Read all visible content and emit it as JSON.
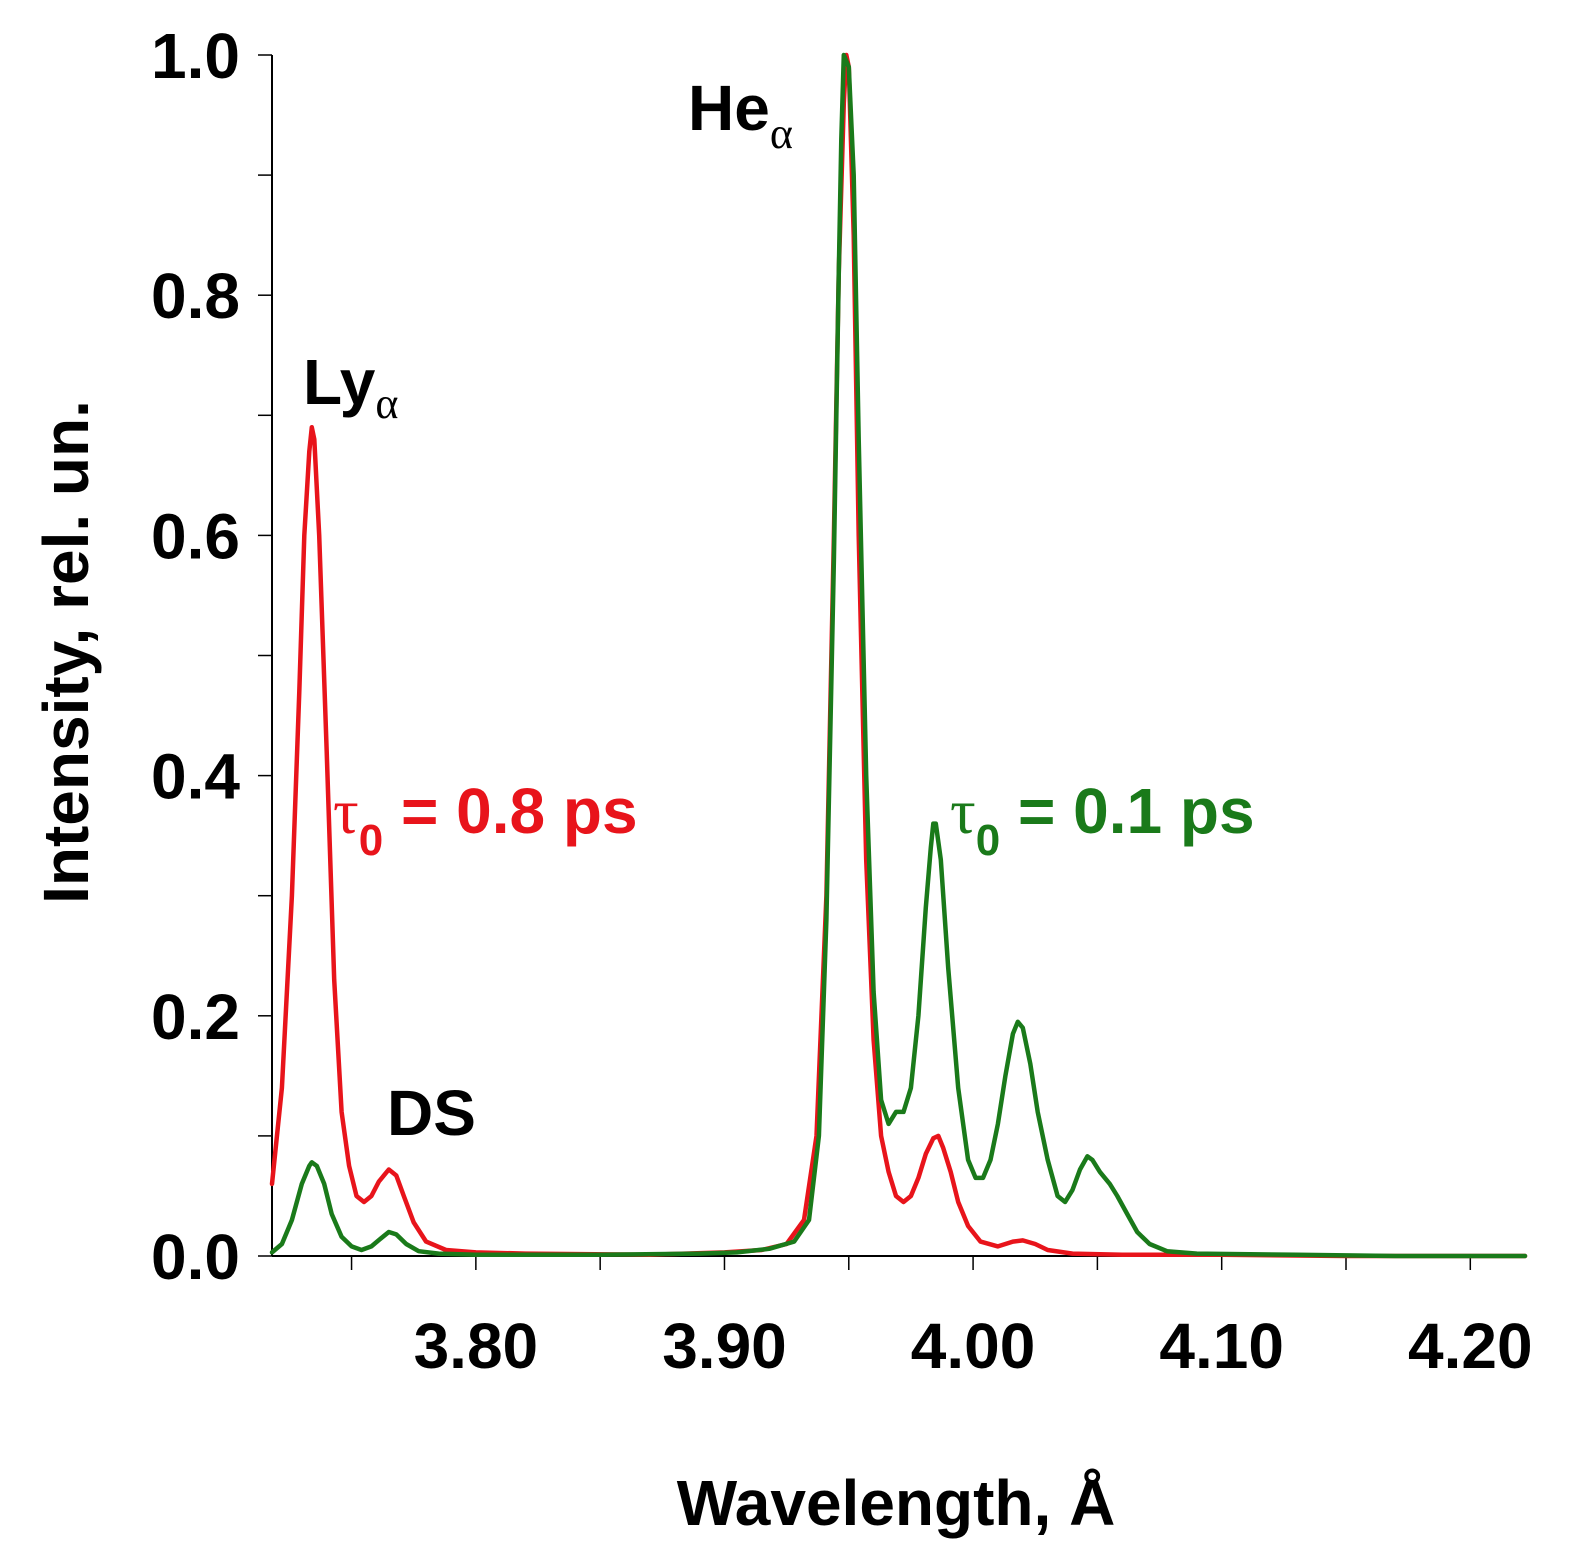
{
  "chart_data": {
    "type": "line",
    "xlabel": "Wavelength, Å",
    "ylabel": "Intensity, rel. un.",
    "xlim": [
      3.718,
      4.222
    ],
    "ylim": [
      0.0,
      1.0
    ],
    "grid": false,
    "x_ticks_labeled": [
      "3.80",
      "3.90",
      "4.00",
      "4.10",
      "4.20"
    ],
    "y_ticks_labeled": [
      "0.0",
      "0.2",
      "0.4",
      "0.6",
      "0.8",
      "1.0"
    ],
    "annotations": [
      {
        "id": "lya",
        "base": "Ly",
        "sub": "α",
        "color": "#000000"
      },
      {
        "id": "ds",
        "base": "DS",
        "sub": "",
        "color": "#000000"
      },
      {
        "id": "hea",
        "base": "He",
        "sub": "α",
        "color": "#000000"
      },
      {
        "id": "tau08",
        "greek": "τ",
        "sub": "0",
        "text": " = 0.8 ps",
        "color": "#e8141b"
      },
      {
        "id": "tau01",
        "greek": "τ",
        "sub": "0",
        "text": " = 0.1 ps",
        "color": "#1a7a1a"
      }
    ],
    "series": [
      {
        "name": "τ0 = 0.8 ps",
        "color": "#e8141b",
        "points": [
          [
            3.718,
            0.06
          ],
          [
            3.722,
            0.14
          ],
          [
            3.726,
            0.3
          ],
          [
            3.729,
            0.47
          ],
          [
            3.731,
            0.6
          ],
          [
            3.733,
            0.67
          ],
          [
            3.734,
            0.69
          ],
          [
            3.735,
            0.68
          ],
          [
            3.737,
            0.6
          ],
          [
            3.74,
            0.42
          ],
          [
            3.743,
            0.23
          ],
          [
            3.746,
            0.12
          ],
          [
            3.749,
            0.075
          ],
          [
            3.752,
            0.05
          ],
          [
            3.755,
            0.045
          ],
          [
            3.758,
            0.05
          ],
          [
            3.761,
            0.062
          ],
          [
            3.765,
            0.072
          ],
          [
            3.768,
            0.067
          ],
          [
            3.771,
            0.05
          ],
          [
            3.775,
            0.028
          ],
          [
            3.78,
            0.012
          ],
          [
            3.788,
            0.005
          ],
          [
            3.8,
            0.003
          ],
          [
            3.82,
            0.002
          ],
          [
            3.87,
            0.001
          ],
          [
            3.9,
            0.003
          ],
          [
            3.915,
            0.005
          ],
          [
            3.925,
            0.01
          ],
          [
            3.932,
            0.03
          ],
          [
            3.937,
            0.1
          ],
          [
            3.941,
            0.3
          ],
          [
            3.944,
            0.6
          ],
          [
            3.946,
            0.82
          ],
          [
            3.948,
            0.96
          ],
          [
            3.949,
            1.0
          ],
          [
            3.95,
            0.99
          ],
          [
            3.952,
            0.85
          ],
          [
            3.954,
            0.6
          ],
          [
            3.957,
            0.33
          ],
          [
            3.96,
            0.18
          ],
          [
            3.963,
            0.1
          ],
          [
            3.966,
            0.07
          ],
          [
            3.969,
            0.05
          ],
          [
            3.972,
            0.045
          ],
          [
            3.975,
            0.05
          ],
          [
            3.978,
            0.065
          ],
          [
            3.981,
            0.085
          ],
          [
            3.984,
            0.098
          ],
          [
            3.986,
            0.1
          ],
          [
            3.988,
            0.09
          ],
          [
            3.991,
            0.07
          ],
          [
            3.994,
            0.045
          ],
          [
            3.998,
            0.025
          ],
          [
            4.003,
            0.012
          ],
          [
            4.01,
            0.008
          ],
          [
            4.016,
            0.012
          ],
          [
            4.02,
            0.013
          ],
          [
            4.025,
            0.01
          ],
          [
            4.03,
            0.005
          ],
          [
            4.04,
            0.002
          ],
          [
            4.06,
            0.001
          ],
          [
            4.1,
            0.001
          ],
          [
            4.15,
            0.0
          ],
          [
            4.222,
            0.0
          ]
        ]
      },
      {
        "name": "τ0 = 0.1 ps",
        "color": "#1a7a1a",
        "points": [
          [
            3.718,
            0.003
          ],
          [
            3.722,
            0.01
          ],
          [
            3.726,
            0.03
          ],
          [
            3.73,
            0.06
          ],
          [
            3.733,
            0.075
          ],
          [
            3.734,
            0.078
          ],
          [
            3.736,
            0.075
          ],
          [
            3.739,
            0.06
          ],
          [
            3.742,
            0.035
          ],
          [
            3.746,
            0.016
          ],
          [
            3.75,
            0.008
          ],
          [
            3.754,
            0.005
          ],
          [
            3.758,
            0.008
          ],
          [
            3.762,
            0.015
          ],
          [
            3.765,
            0.02
          ],
          [
            3.768,
            0.018
          ],
          [
            3.772,
            0.01
          ],
          [
            3.777,
            0.004
          ],
          [
            3.785,
            0.002
          ],
          [
            3.8,
            0.001
          ],
          [
            3.85,
            0.001
          ],
          [
            3.89,
            0.002
          ],
          [
            3.905,
            0.003
          ],
          [
            3.918,
            0.006
          ],
          [
            3.928,
            0.012
          ],
          [
            3.934,
            0.03
          ],
          [
            3.938,
            0.1
          ],
          [
            3.941,
            0.28
          ],
          [
            3.944,
            0.58
          ],
          [
            3.946,
            0.82
          ],
          [
            3.947,
            0.93
          ],
          [
            3.948,
            1.0
          ],
          [
            3.95,
            0.99
          ],
          [
            3.952,
            0.9
          ],
          [
            3.954,
            0.68
          ],
          [
            3.957,
            0.4
          ],
          [
            3.96,
            0.22
          ],
          [
            3.963,
            0.13
          ],
          [
            3.966,
            0.11
          ],
          [
            3.969,
            0.12
          ],
          [
            3.972,
            0.12
          ],
          [
            3.975,
            0.14
          ],
          [
            3.978,
            0.2
          ],
          [
            3.981,
            0.29
          ],
          [
            3.983,
            0.34
          ],
          [
            3.984,
            0.36
          ],
          [
            3.985,
            0.36
          ],
          [
            3.987,
            0.33
          ],
          [
            3.99,
            0.24
          ],
          [
            3.994,
            0.14
          ],
          [
            3.998,
            0.08
          ],
          [
            4.001,
            0.065
          ],
          [
            4.004,
            0.065
          ],
          [
            4.007,
            0.08
          ],
          [
            4.01,
            0.11
          ],
          [
            4.013,
            0.15
          ],
          [
            4.016,
            0.185
          ],
          [
            4.018,
            0.195
          ],
          [
            4.02,
            0.19
          ],
          [
            4.023,
            0.16
          ],
          [
            4.026,
            0.12
          ],
          [
            4.03,
            0.08
          ],
          [
            4.034,
            0.05
          ],
          [
            4.037,
            0.045
          ],
          [
            4.04,
            0.055
          ],
          [
            4.043,
            0.072
          ],
          [
            4.046,
            0.083
          ],
          [
            4.048,
            0.08
          ],
          [
            4.051,
            0.07
          ],
          [
            4.055,
            0.06
          ],
          [
            4.058,
            0.05
          ],
          [
            4.062,
            0.035
          ],
          [
            4.066,
            0.02
          ],
          [
            4.071,
            0.01
          ],
          [
            4.078,
            0.004
          ],
          [
            4.09,
            0.002
          ],
          [
            4.13,
            0.001
          ],
          [
            4.17,
            0.0
          ],
          [
            4.222,
            0.0
          ]
        ]
      }
    ]
  }
}
